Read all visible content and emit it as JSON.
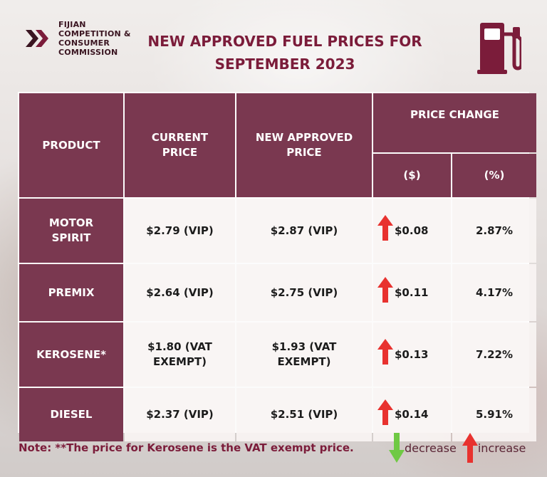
{
  "logo": {
    "lines": [
      "FIJIAN",
      "COMPETITION &",
      "CONSUMER",
      "COMMISSION"
    ]
  },
  "title": {
    "line1": "NEW APPROVED FUEL PRICES FOR",
    "line2": "SEPTEMBER 2023"
  },
  "colors": {
    "header_bg": "#7a3850",
    "title_text": "#7b1c3a",
    "increase_arrow": "#e8322f",
    "decrease_arrow": "#6fc944"
  },
  "table": {
    "headers": {
      "product": "PRODUCT",
      "current_price": [
        "CURRENT",
        "PRICE"
      ],
      "new_price": [
        "NEW APPROVED",
        "PRICE"
      ],
      "price_change": "PRICE CHANGE",
      "change_dollar": "($)",
      "change_percent": "(%)"
    },
    "rows": [
      {
        "product": [
          "MOTOR",
          "SPIRIT"
        ],
        "current": [
          "$2.79 (VIP)"
        ],
        "new": [
          "$2.87 (VIP)"
        ],
        "change_dollar": "$0.08",
        "change_percent": "2.87%",
        "direction": "increase"
      },
      {
        "product": [
          "PREMIX"
        ],
        "current": [
          "$2.64 (VIP)"
        ],
        "new": [
          "$2.75 (VIP)"
        ],
        "change_dollar": "$0.11",
        "change_percent": "4.17%",
        "direction": "increase"
      },
      {
        "product": [
          "KEROSENE*"
        ],
        "current": [
          "$1.80 (VAT",
          "EXEMPT)"
        ],
        "new": [
          "$1.93 (VAT",
          "EXEMPT)"
        ],
        "change_dollar": "$0.13",
        "change_percent": "7.22%",
        "direction": "increase"
      },
      {
        "product": [
          "DIESEL"
        ],
        "current": [
          "$2.37 (VIP)"
        ],
        "new": [
          "$2.51 (VIP)"
        ],
        "change_dollar": "$0.14",
        "change_percent": "5.91%",
        "direction": "increase"
      }
    ]
  },
  "footer": {
    "note": "Note: **The price for Kerosene is the VAT exempt price.",
    "legend_decrease": "decrease",
    "legend_increase": "increase"
  }
}
